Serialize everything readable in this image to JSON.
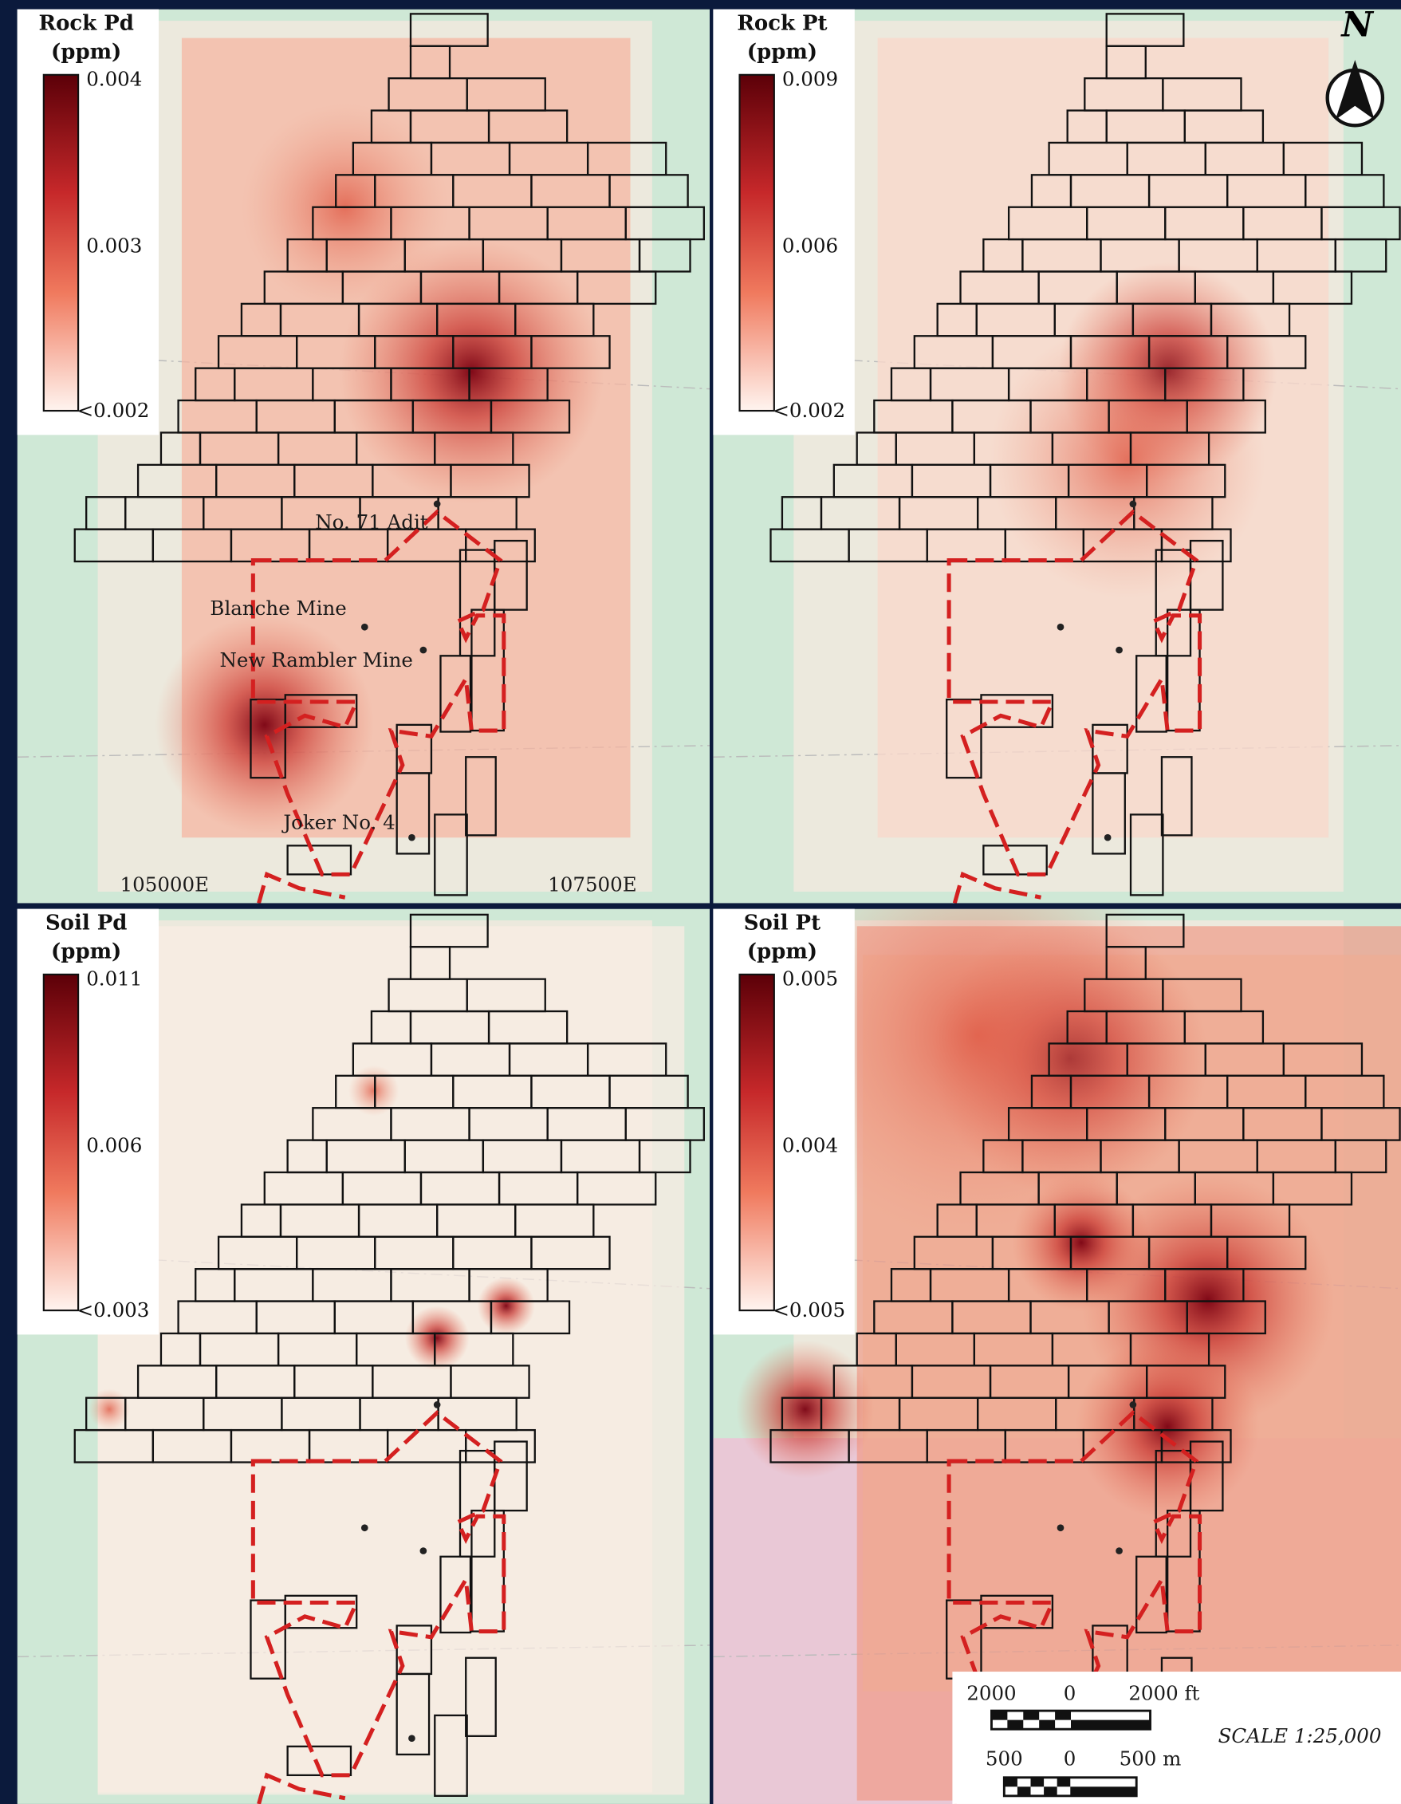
{
  "panels": [
    {
      "title": "Rock Pd",
      "unit": "(ppm)",
      "legend": {
        "max": "0.004",
        "mid": "0.003",
        "min": "<0.002"
      }
    },
    {
      "title": "Rock Pt",
      "unit": "(ppm)",
      "legend": {
        "max": "0.009",
        "mid": "0.006",
        "min": "<0.002"
      }
    },
    {
      "title": "Soil Pd",
      "unit": "(ppm)",
      "legend": {
        "max": "0.011",
        "mid": "0.006",
        "min": "<0.003"
      }
    },
    {
      "title": "Soil Pt",
      "unit": "(ppm)",
      "legend": {
        "max": "0.005",
        "mid": "0.004",
        "min": "<0.005"
      }
    }
  ],
  "mines": [
    "No. 71 Adit",
    "Blanche Mine",
    "New Rambler Mine",
    "Joker No. 4"
  ],
  "eastings": [
    "105000E",
    "107500E"
  ],
  "north": "N",
  "scale": {
    "ft": [
      "2000",
      "0",
      "2000 ft"
    ],
    "m": [
      "500",
      "0",
      "500 m"
    ],
    "ratio": "SCALE 1:25,000"
  }
}
